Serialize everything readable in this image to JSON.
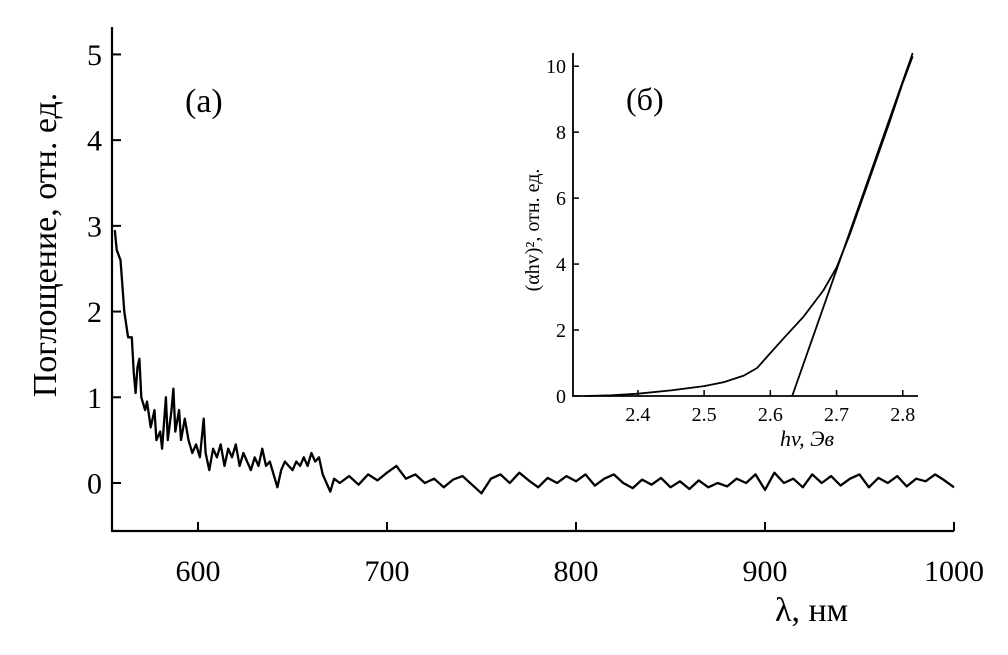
{
  "chart_data": [
    {
      "type": "line",
      "panel_label": "(a)",
      "xlabel": "λ, нм",
      "ylabel": "Поглощение, отн. ед.",
      "xlim": [
        554.5,
        1000
      ],
      "ylim": [
        -0.56,
        5.32
      ],
      "xticks": [
        600,
        700,
        800,
        900,
        1000
      ],
      "yticks": [
        0,
        1,
        2,
        3,
        4,
        5
      ],
      "grid": false,
      "series": [
        {
          "color": "#000000",
          "x": [
            556,
            557,
            559,
            561,
            563,
            565,
            566,
            567,
            568,
            569,
            570,
            572,
            573,
            575,
            577,
            578,
            580,
            581,
            583,
            584,
            586,
            587,
            588,
            590,
            591,
            593,
            595,
            597,
            599,
            601,
            603,
            604,
            606,
            608,
            610,
            612,
            614,
            616,
            618,
            620,
            622,
            624,
            626,
            628,
            630,
            632,
            634,
            636,
            638,
            640,
            642,
            644,
            646,
            648,
            650,
            652,
            654,
            656,
            658,
            660,
            662,
            664,
            666,
            668,
            670,
            672,
            675,
            680,
            685,
            690,
            695,
            700,
            705,
            710,
            715,
            720,
            725,
            730,
            735,
            740,
            745,
            750,
            755,
            760,
            765,
            770,
            775,
            780,
            785,
            790,
            795,
            800,
            805,
            810,
            815,
            820,
            825,
            830,
            835,
            840,
            845,
            850,
            855,
            860,
            865,
            870,
            875,
            880,
            885,
            890,
            895,
            900,
            905,
            910,
            915,
            920,
            925,
            930,
            935,
            940,
            945,
            950,
            955,
            960,
            965,
            970,
            975,
            980,
            985,
            990,
            995,
            1000
          ],
          "y": [
            2.95,
            2.72,
            2.6,
            2.0,
            1.7,
            1.7,
            1.3,
            1.05,
            1.35,
            1.45,
            1.0,
            0.85,
            0.95,
            0.65,
            0.85,
            0.5,
            0.6,
            0.4,
            1.0,
            0.5,
            0.85,
            1.1,
            0.6,
            0.85,
            0.5,
            0.75,
            0.5,
            0.35,
            0.45,
            0.3,
            0.75,
            0.35,
            0.15,
            0.4,
            0.3,
            0.45,
            0.2,
            0.4,
            0.3,
            0.45,
            0.2,
            0.35,
            0.25,
            0.15,
            0.3,
            0.2,
            0.4,
            0.2,
            0.25,
            0.1,
            -0.05,
            0.15,
            0.25,
            0.2,
            0.15,
            0.25,
            0.2,
            0.3,
            0.2,
            0.35,
            0.25,
            0.3,
            0.1,
            0.0,
            -0.1,
            0.05,
            0.0,
            0.08,
            -0.02,
            0.1,
            0.03,
            0.12,
            0.2,
            0.05,
            0.1,
            0.0,
            0.05,
            -0.05,
            0.04,
            0.08,
            -0.02,
            -0.12,
            0.05,
            0.1,
            0.0,
            0.12,
            0.03,
            -0.05,
            0.06,
            0.0,
            0.08,
            0.02,
            0.1,
            -0.03,
            0.05,
            0.1,
            0.0,
            -0.06,
            0.04,
            -0.02,
            0.06,
            -0.05,
            0.02,
            -0.07,
            0.03,
            -0.05,
            0.0,
            -0.04,
            0.05,
            0.0,
            0.1,
            -0.08,
            0.12,
            0.0,
            0.05,
            -0.05,
            0.1,
            0.0,
            0.08,
            -0.03,
            0.05,
            0.1,
            -0.05,
            0.06,
            0.0,
            0.08,
            -0.04,
            0.05,
            0.02,
            0.1,
            0.03,
            -0.05
          ]
        }
      ]
    },
    {
      "type": "line",
      "panel_label": "(б)",
      "xlabel": "hv, Эв",
      "ylabel": "(αhv)², отн. ед.",
      "xlim": [
        2.302,
        2.823
      ],
      "ylim": [
        0,
        10.4
      ],
      "xticks": [
        2.4,
        2.5,
        2.6,
        2.7,
        2.8
      ],
      "yticks": [
        0,
        2,
        4,
        6,
        8,
        10
      ],
      "grid": false,
      "series": [
        {
          "color": "#000000",
          "x": [
            2.32,
            2.36,
            2.4,
            2.45,
            2.5,
            2.53,
            2.56,
            2.58,
            2.6,
            2.62,
            2.65,
            2.68,
            2.7,
            2.72,
            2.75,
            2.78,
            2.8,
            2.815
          ],
          "y": [
            0.0,
            0.02,
            0.07,
            0.17,
            0.3,
            0.42,
            0.62,
            0.85,
            1.3,
            1.75,
            2.4,
            3.2,
            3.9,
            4.9,
            6.6,
            8.3,
            9.5,
            10.3
          ]
        },
        {
          "color": "#000000",
          "x": [
            2.633,
            2.815
          ],
          "y": [
            0.0,
            10.4
          ]
        }
      ]
    }
  ]
}
